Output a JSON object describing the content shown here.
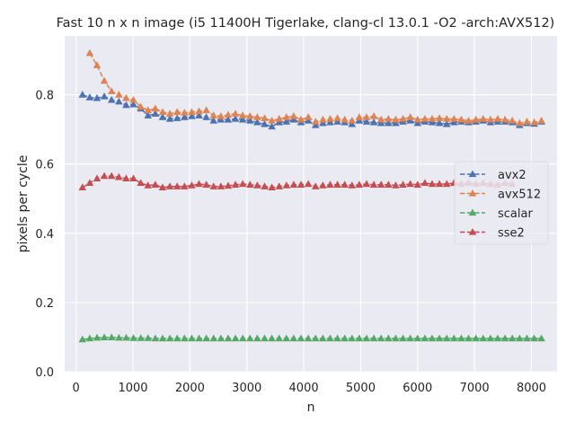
{
  "chart_data": {
    "type": "line",
    "title": "Fast 10 n x n image (i5 11400H Tigerlake, clang-cl 13.0.1 -O2 -arch:AVX512)",
    "xlabel": "n",
    "ylabel": "pixels per cycle",
    "xlim": [
      -200,
      8450
    ],
    "ylim": [
      0.0,
      0.97
    ],
    "xticks": [
      0,
      1000,
      2000,
      3000,
      4000,
      5000,
      6000,
      7000,
      8000
    ],
    "xtick_labels": [
      "0",
      "1000",
      "2000",
      "3000",
      "4000",
      "5000",
      "6000",
      "7000",
      "8000"
    ],
    "yticks": [
      0.0,
      0.2,
      0.4,
      0.6,
      0.8
    ],
    "ytick_labels": [
      "0.0",
      "0.2",
      "0.4",
      "0.6",
      "0.8"
    ],
    "grid": true,
    "legend_position": "center-right",
    "background": "#eaeaf2",
    "series": [
      {
        "name": "avx2",
        "color": "#4c72b0",
        "marker": "triangle",
        "linestyle": "dashed",
        "x": [
          112,
          240,
          368,
          496,
          624,
          752,
          880,
          1008,
          1136,
          1264,
          1392,
          1520,
          1648,
          1776,
          1904,
          2032,
          2160,
          2288,
          2416,
          2544,
          2672,
          2800,
          2928,
          3056,
          3184,
          3312,
          3440,
          3568,
          3696,
          3824,
          3952,
          4080,
          4208,
          4336,
          4464,
          4592,
          4720,
          4848,
          4976,
          5104,
          5232,
          5360,
          5488,
          5616,
          5744,
          5872,
          6000,
          6128,
          6256,
          6384,
          6512,
          6640,
          6768,
          6896,
          7024,
          7152,
          7280,
          7408,
          7536,
          7664,
          7792,
          7920,
          8048,
          8176
        ],
        "y": [
          0.8,
          0.792,
          0.79,
          0.795,
          0.785,
          0.78,
          0.77,
          0.772,
          0.76,
          0.74,
          0.745,
          0.735,
          0.73,
          0.732,
          0.735,
          0.738,
          0.74,
          0.735,
          0.725,
          0.728,
          0.728,
          0.73,
          0.728,
          0.725,
          0.72,
          0.715,
          0.708,
          0.72,
          0.722,
          0.728,
          0.72,
          0.725,
          0.712,
          0.718,
          0.72,
          0.722,
          0.72,
          0.715,
          0.725,
          0.722,
          0.72,
          0.718,
          0.718,
          0.718,
          0.722,
          0.725,
          0.718,
          0.722,
          0.72,
          0.718,
          0.715,
          0.72,
          0.722,
          0.72,
          0.722,
          0.725,
          0.72,
          0.722,
          0.722,
          0.72,
          0.712,
          0.718,
          0.716,
          0.722
        ]
      },
      {
        "name": "avx512",
        "color": "#dd8452",
        "marker": "triangle",
        "linestyle": "dashed",
        "x": [
          240,
          368,
          496,
          624,
          752,
          880,
          1008,
          1136,
          1264,
          1392,
          1520,
          1648,
          1776,
          1904,
          2032,
          2160,
          2288,
          2416,
          2544,
          2672,
          2800,
          2928,
          3056,
          3184,
          3312,
          3440,
          3568,
          3696,
          3824,
          3952,
          4080,
          4208,
          4336,
          4464,
          4592,
          4720,
          4848,
          4976,
          5104,
          5232,
          5360,
          5488,
          5616,
          5744,
          5872,
          6000,
          6128,
          6256,
          6384,
          6512,
          6640,
          6768,
          6896,
          7024,
          7152,
          7280,
          7408,
          7536,
          7664,
          7792,
          7920,
          8048,
          8176
        ],
        "y": [
          0.92,
          0.885,
          0.84,
          0.81,
          0.8,
          0.79,
          0.785,
          0.765,
          0.755,
          0.76,
          0.75,
          0.745,
          0.75,
          0.748,
          0.75,
          0.752,
          0.755,
          0.74,
          0.738,
          0.742,
          0.745,
          0.74,
          0.738,
          0.735,
          0.732,
          0.725,
          0.73,
          0.735,
          0.738,
          0.728,
          0.735,
          0.722,
          0.728,
          0.73,
          0.732,
          0.728,
          0.725,
          0.735,
          0.735,
          0.738,
          0.728,
          0.73,
          0.728,
          0.73,
          0.735,
          0.728,
          0.73,
          0.73,
          0.732,
          0.73,
          0.73,
          0.728,
          0.725,
          0.728,
          0.73,
          0.728,
          0.73,
          0.728,
          0.725,
          0.718,
          0.722,
          0.72,
          0.725
        ]
      },
      {
        "name": "scalar",
        "color": "#55a868",
        "marker": "triangle",
        "linestyle": "dashed",
        "x": [
          112,
          240,
          368,
          496,
          624,
          752,
          880,
          1008,
          1136,
          1264,
          1392,
          1520,
          1648,
          1776,
          1904,
          2032,
          2160,
          2288,
          2416,
          2544,
          2672,
          2800,
          2928,
          3056,
          3184,
          3312,
          3440,
          3568,
          3696,
          3824,
          3952,
          4080,
          4208,
          4336,
          4464,
          4592,
          4720,
          4848,
          4976,
          5104,
          5232,
          5360,
          5488,
          5616,
          5744,
          5872,
          6000,
          6128,
          6256,
          6384,
          6512,
          6640,
          6768,
          6896,
          7024,
          7152,
          7280,
          7408,
          7536,
          7664,
          7792,
          7920,
          8048,
          8176
        ],
        "y": [
          0.093,
          0.096,
          0.098,
          0.099,
          0.099,
          0.098,
          0.098,
          0.097,
          0.097,
          0.097,
          0.096,
          0.096,
          0.096,
          0.096,
          0.096,
          0.096,
          0.096,
          0.096,
          0.096,
          0.096,
          0.096,
          0.096,
          0.096,
          0.096,
          0.096,
          0.096,
          0.096,
          0.096,
          0.096,
          0.096,
          0.096,
          0.096,
          0.096,
          0.096,
          0.096,
          0.096,
          0.096,
          0.096,
          0.096,
          0.096,
          0.096,
          0.096,
          0.096,
          0.096,
          0.096,
          0.096,
          0.096,
          0.096,
          0.096,
          0.096,
          0.096,
          0.096,
          0.096,
          0.096,
          0.096,
          0.096,
          0.096,
          0.096,
          0.096,
          0.096,
          0.096,
          0.096,
          0.096,
          0.096
        ]
      },
      {
        "name": "sse2",
        "color": "#c44e52",
        "marker": "triangle",
        "linestyle": "dashed",
        "x": [
          112,
          240,
          368,
          496,
          624,
          752,
          880,
          1008,
          1136,
          1264,
          1392,
          1520,
          1648,
          1776,
          1904,
          2032,
          2160,
          2288,
          2416,
          2544,
          2672,
          2800,
          2928,
          3056,
          3184,
          3312,
          3440,
          3568,
          3696,
          3824,
          3952,
          4080,
          4208,
          4336,
          4464,
          4592,
          4720,
          4848,
          4976,
          5104,
          5232,
          5360,
          5488,
          5616,
          5744,
          5872,
          6000,
          6128,
          6256,
          6384,
          6512,
          6640,
          6768,
          6896,
          7024,
          7152,
          7280,
          7408,
          7536,
          7664
        ],
        "y": [
          0.532,
          0.545,
          0.558,
          0.565,
          0.565,
          0.562,
          0.558,
          0.558,
          0.545,
          0.538,
          0.54,
          0.532,
          0.535,
          0.535,
          0.535,
          0.538,
          0.542,
          0.54,
          0.535,
          0.535,
          0.537,
          0.54,
          0.542,
          0.54,
          0.538,
          0.535,
          0.532,
          0.535,
          0.538,
          0.54,
          0.54,
          0.542,
          0.535,
          0.538,
          0.54,
          0.54,
          0.54,
          0.538,
          0.54,
          0.542,
          0.54,
          0.54,
          0.54,
          0.538,
          0.54,
          0.542,
          0.54,
          0.545,
          0.542,
          0.542,
          0.542,
          0.545,
          0.542,
          0.545,
          0.542,
          0.545,
          0.542,
          0.54,
          0.545,
          0.542
        ]
      }
    ]
  }
}
